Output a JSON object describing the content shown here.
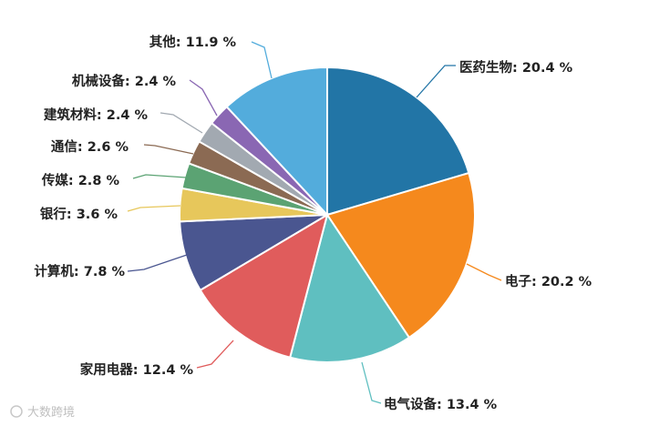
{
  "chart_data": {
    "type": "pie",
    "categories": [
      "医药生物",
      "电子",
      "电气设备",
      "家用电器",
      "计算机",
      "银行",
      "传媒",
      "通信",
      "建筑材料",
      "机械设备",
      "其他"
    ],
    "values": [
      20.4,
      20.2,
      13.4,
      12.4,
      7.8,
      3.6,
      2.8,
      2.6,
      2.4,
      2.4,
      11.9
    ],
    "labels": [
      "医药生物: 20.4 %",
      "电子: 20.2 %",
      "电气设备: 13.4 %",
      "家用电器: 12.4 %",
      "计算机: 7.8 %",
      "银行: 3.6 %",
      "传媒: 2.8 %",
      "通信: 2.6 %",
      "建筑材料: 2.4 %",
      "机械设备: 2.4 %",
      "其他: 11.9 %"
    ],
    "colors": [
      "#2275a6",
      "#f5891d",
      "#5fbfc0",
      "#e05c5c",
      "#4a5690",
      "#e7c75b",
      "#5ba373",
      "#8b6a53",
      "#a2a9b1",
      "#8a67b3",
      "#53acdc"
    ],
    "legend": "none"
  },
  "watermark": "大数跨境"
}
